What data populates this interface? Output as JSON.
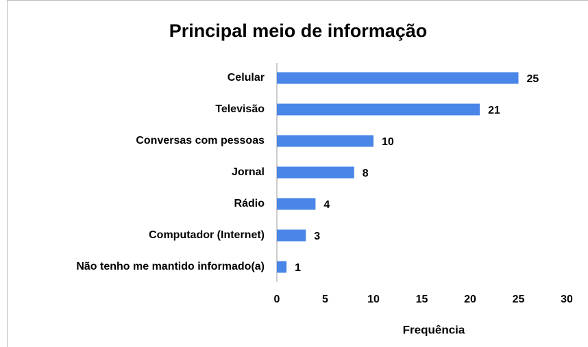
{
  "chart_data": {
    "type": "bar",
    "orientation": "horizontal",
    "title": "Principal meio de informação",
    "categories": [
      "Celular",
      "Televisão",
      "Conversas com pessoas",
      "Jornal",
      "Rádio",
      "Computador (Internet)",
      "Não tenho me mantido informado(a)"
    ],
    "values": [
      25,
      21,
      10,
      8,
      4,
      3,
      1
    ],
    "color": "#4a86e8",
    "xlabel": "Frequência",
    "xlim": [
      0,
      30
    ],
    "xticks": [
      0,
      5,
      10,
      15,
      20,
      25,
      30
    ],
    "grid": false
  }
}
